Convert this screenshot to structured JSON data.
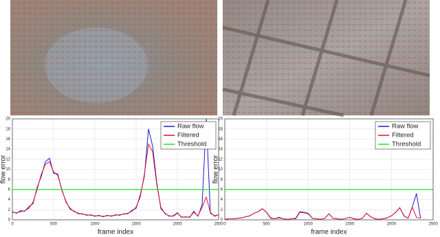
{
  "chart_data": [
    {
      "type": "line",
      "xlabel": "frame index",
      "ylabel": "flow error",
      "x": [
        0,
        50,
        100,
        150,
        200,
        250,
        300,
        350,
        400,
        450,
        500,
        550,
        600,
        650,
        700,
        750,
        800,
        850,
        900,
        950,
        1000,
        1050,
        1100,
        1150,
        1200,
        1250,
        1300,
        1350,
        1400,
        1450,
        1500,
        1550,
        1600,
        1650,
        1700,
        1750,
        1800,
        1850,
        1900,
        1950,
        2000,
        2050,
        2100,
        2150,
        2200,
        2250,
        2300,
        2350,
        2400,
        2450,
        2500
      ],
      "series": [
        {
          "name": "Raw flow",
          "color": "#1a1ad0",
          "values": [
            1.6,
            1.3,
            1.8,
            1.7,
            2.6,
            3.2,
            6.4,
            8.6,
            11.5,
            12.2,
            9.2,
            9.1,
            5.8,
            3.7,
            2.1,
            1.7,
            1.2,
            1.2,
            0.9,
            1,
            0.7,
            0.9,
            0.6,
            0.9,
            0.7,
            1,
            0.9,
            1.2,
            1.2,
            1.9,
            2.3,
            4.9,
            8.6,
            18,
            14.6,
            7.4,
            2.2,
            1.3,
            0.7,
            0.8,
            1.4,
            0.5,
            0.6,
            0.5,
            1.7,
            0.7,
            3,
            20,
            1.3,
            0.8,
            1
          ]
        },
        {
          "name": "Filtered",
          "color": "#e0102a",
          "values": [
            1.5,
            1.4,
            1.6,
            1.8,
            2.3,
            3.5,
            6,
            9,
            11,
            11.5,
            9.5,
            8.8,
            6,
            3.5,
            2.3,
            1.6,
            1.3,
            1.1,
            1,
            0.9,
            0.8,
            0.8,
            0.7,
            0.8,
            0.8,
            0.9,
            1,
            1.1,
            1.3,
            1.7,
            2.5,
            4.5,
            9,
            15,
            13.5,
            7,
            2.5,
            1.2,
            0.8,
            0.7,
            1.3,
            0.6,
            0.5,
            0.6,
            1.5,
            0.8,
            2.5,
            4.5,
            1.5,
            0.7,
            1
          ]
        },
        {
          "name": "Threshold",
          "color": "#22dd22",
          "values": [
            6,
            6,
            6,
            6,
            6,
            6,
            6,
            6,
            6,
            6,
            6,
            6,
            6,
            6,
            6,
            6,
            6,
            6,
            6,
            6,
            6,
            6,
            6,
            6,
            6,
            6,
            6,
            6,
            6,
            6,
            6,
            6,
            6,
            6,
            6,
            6,
            6,
            6,
            6,
            6,
            6,
            6,
            6,
            6,
            6,
            6,
            6,
            6,
            6,
            6,
            6
          ]
        }
      ],
      "xlim": [
        0,
        2500
      ],
      "ylim": [
        0,
        20
      ],
      "xticks": [
        0,
        500,
        1000,
        1500,
        2000,
        2500
      ],
      "yticks": [
        0,
        2,
        4,
        6,
        8,
        10,
        12,
        14,
        16,
        18,
        20
      ],
      "grid": true,
      "legend": "upper right"
    },
    {
      "type": "line",
      "xlabel": "frame index",
      "ylabel": "flow error",
      "x": [
        0,
        50,
        100,
        150,
        200,
        250,
        300,
        350,
        400,
        450,
        500,
        550,
        600,
        650,
        700,
        750,
        800,
        850,
        900,
        950,
        1000,
        1050,
        1100,
        1150,
        1200,
        1250,
        1300,
        1350,
        1400,
        1450,
        1500,
        1550,
        1600,
        1650,
        1700,
        1750,
        1800,
        1850,
        1900,
        1950,
        2000,
        2050,
        2100,
        2150,
        2200,
        2250,
        2300,
        2350,
        2400,
        2450,
        2500
      ],
      "series": [
        {
          "name": "Raw flow",
          "color": "#1a1ad0",
          "values": [
            0.1,
            0.2,
            0.2,
            0.3,
            0.4,
            0.6,
            0.8,
            1.3,
            1.6,
            2.2,
            1.5,
            0.4,
            0.2,
            0.5,
            0.2,
            0.1,
            0.2,
            0.3,
            1.6,
            1.5,
            1.3,
            0.3,
            0.2,
            0.1,
            0.3,
            1.2,
            0.3,
            0.2,
            0.1,
            0.3,
            0.5,
            0.2,
            0.1,
            0.3,
            1.3,
            0.6,
            0.2,
            0.1,
            0.2,
            0.4,
            0.8,
            1.5,
            2.4,
            0.8,
            0.3,
            2.6,
            5.2,
            0.3,
            null,
            null,
            null
          ]
        },
        {
          "name": "Filtered",
          "color": "#e0102a",
          "values": [
            0.1,
            0.2,
            0.2,
            0.3,
            0.4,
            0.6,
            0.8,
            1.3,
            1.6,
            2.2,
            1.5,
            0.3,
            0.2,
            0.4,
            0.2,
            0.1,
            0.2,
            0.2,
            1.5,
            1.4,
            1.2,
            0.3,
            0.2,
            0.1,
            0.3,
            1.2,
            0.3,
            0.2,
            0.1,
            0.3,
            0.5,
            0.2,
            0.1,
            0.3,
            1.3,
            0.6,
            0.2,
            0.1,
            0.2,
            0.4,
            0.8,
            1.5,
            2.4,
            0.8,
            0.3,
            2.5,
            0.5,
            0.3,
            null,
            null,
            null
          ]
        },
        {
          "name": "Threshold",
          "color": "#22dd22",
          "values": [
            6,
            6,
            6,
            6,
            6,
            6,
            6,
            6,
            6,
            6,
            6,
            6,
            6,
            6,
            6,
            6,
            6,
            6,
            6,
            6,
            6,
            6,
            6,
            6,
            6,
            6,
            6,
            6,
            6,
            6,
            6,
            6,
            6,
            6,
            6,
            6,
            6,
            6,
            6,
            6,
            6,
            6,
            6,
            6,
            6,
            6,
            6,
            6,
            6,
            6,
            6
          ]
        }
      ],
      "xlim": [
        0,
        2500
      ],
      "ylim": [
        0,
        20
      ],
      "xticks": [
        0,
        500,
        1000,
        1500,
        2000,
        2500
      ],
      "yticks": [
        0,
        2,
        4,
        6,
        8,
        10,
        12,
        14,
        16,
        18,
        20
      ],
      "grid": true,
      "legend": "upper right"
    }
  ]
}
